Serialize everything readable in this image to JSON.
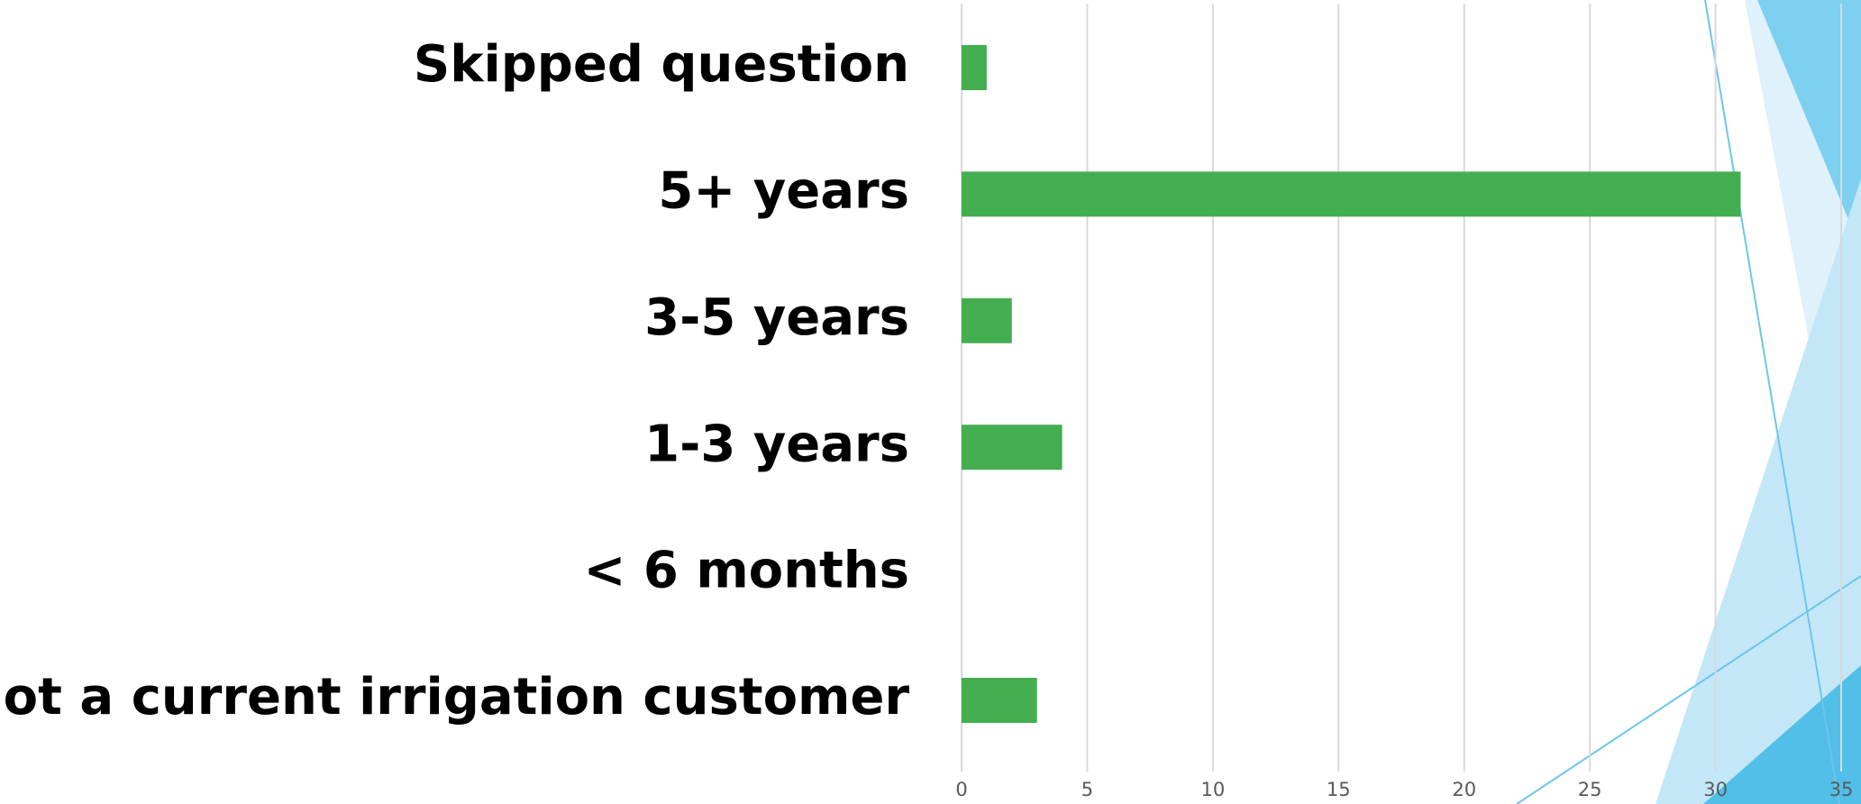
{
  "chart_data": {
    "type": "bar",
    "orientation": "horizontal",
    "categories": [
      "Skipped question",
      "5+ years",
      "3-5 years",
      "1-3 years",
      "< 6 months",
      "Not a current irrigation customer"
    ],
    "values": [
      1,
      31,
      2,
      4,
      0,
      3
    ],
    "color": "#43ae4f",
    "xlim": [
      0,
      35
    ],
    "xticks": [
      0,
      5,
      10,
      15,
      20,
      25,
      30,
      35
    ],
    "grid": true
  }
}
